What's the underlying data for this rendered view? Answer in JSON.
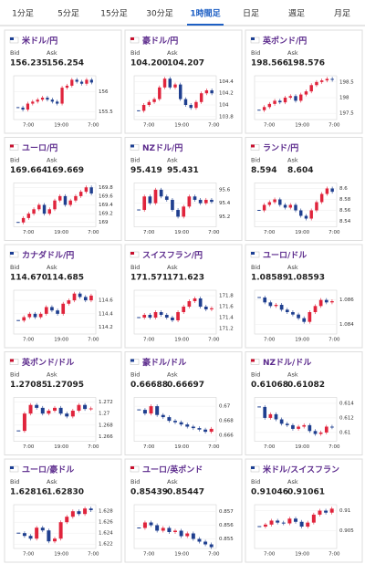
{
  "tabs": [
    "1分足",
    "5分足",
    "15分足",
    "30分足",
    "1時間足",
    "日足",
    "週足",
    "月足"
  ],
  "up_color": "#e0243c",
  "down_color": "#1f3f8f",
  "cards": [
    {
      "pair": "米ドル/円",
      "bid_label": "Bid",
      "ask_label": "Ask",
      "bid": "156.235",
      "ask": "156.254",
      "chart": {
        "type": "candlestick",
        "xlabels": [
          "7:00",
          "19:00",
          "7:00"
        ],
        "ylim": [
          155.3,
          156.4
        ],
        "yticks": [
          156,
          155.5
        ],
        "closes": [
          155.6,
          155.55,
          155.7,
          155.75,
          155.8,
          155.85,
          155.8,
          155.75,
          155.7,
          156.1,
          156.15,
          156.3,
          156.25,
          156.2,
          156.3,
          156.23
        ]
      }
    },
    {
      "pair": "豪ドル/円",
      "bid_label": "Bid",
      "ask_label": "Ask",
      "bid": "104.200",
      "ask": "104.207",
      "chart": {
        "type": "candlestick",
        "xlabels": [
          "7:00",
          "19:00",
          "7:00"
        ],
        "ylim": [
          103.75,
          104.5
        ],
        "yticks": [
          104.4,
          104.2,
          104,
          103.8
        ],
        "closes": [
          103.9,
          104.0,
          104.05,
          104.1,
          104.3,
          104.45,
          104.3,
          104.35,
          104.1,
          104.0,
          103.95,
          104.05,
          104.2,
          104.25,
          104.2
        ]
      }
    },
    {
      "pair": "英ポンド/円",
      "bid_label": "Bid",
      "ask_label": "Ask",
      "bid": "198.566",
      "ask": "198.576",
      "chart": {
        "type": "candlestick",
        "xlabels": [
          "7:00",
          "19:00",
          "7:00"
        ],
        "ylim": [
          197.3,
          198.7
        ],
        "yticks": [
          198.5,
          198,
          197.5
        ],
        "closes": [
          197.6,
          197.7,
          197.8,
          197.9,
          197.85,
          198.0,
          198.05,
          197.9,
          198.1,
          198.2,
          198.4,
          198.5,
          198.55,
          198.6,
          198.57
        ]
      }
    },
    {
      "pair": "ユーロ/円",
      "bid_label": "Bid",
      "ask_label": "Ask",
      "bid": "169.664",
      "ask": "169.669",
      "chart": {
        "type": "candlestick",
        "xlabels": [
          "7:00",
          "19:00",
          "7:00"
        ],
        "ylim": [
          168.9,
          169.9
        ],
        "yticks": [
          169.8,
          169.6,
          169.4,
          169.2,
          169
        ],
        "closes": [
          169.0,
          169.1,
          169.2,
          169.3,
          169.4,
          169.2,
          169.3,
          169.5,
          169.6,
          169.4,
          169.5,
          169.6,
          169.7,
          169.8,
          169.66
        ]
      }
    },
    {
      "pair": "NZドル/円",
      "bid_label": "Bid",
      "ask_label": "Ask",
      "bid": "95.419",
      "ask": "95.431",
      "chart": {
        "type": "candlestick",
        "xlabels": [
          "7:00",
          "19:00",
          "7:00"
        ],
        "ylim": [
          95.05,
          95.7
        ],
        "yticks": [
          95.6,
          95.4,
          95.2
        ],
        "closes": [
          95.3,
          95.5,
          95.4,
          95.6,
          95.5,
          95.45,
          95.3,
          95.2,
          95.35,
          95.5,
          95.45,
          95.4,
          95.45,
          95.42
        ]
      }
    },
    {
      "pair": "ランド/円",
      "bid_label": "Bid",
      "ask_label": "Ask",
      "bid": "8.594",
      "ask": "8.604",
      "chart": {
        "type": "candlestick",
        "xlabels": [
          "7:00",
          "19:00",
          "7:00"
        ],
        "ylim": [
          8.53,
          8.61
        ],
        "yticks": [
          8.6,
          8.58,
          8.56,
          8.54
        ],
        "closes": [
          8.56,
          8.57,
          8.575,
          8.58,
          8.57,
          8.565,
          8.57,
          8.56,
          8.55,
          8.545,
          8.56,
          8.575,
          8.59,
          8.6,
          8.594
        ]
      }
    },
    {
      "pair": "カナダドル/円",
      "bid_label": "Bid",
      "ask_label": "Ask",
      "bid": "114.670",
      "ask": "114.685",
      "chart": {
        "type": "candlestick",
        "xlabels": [
          "7:00",
          "19:00",
          "7:00"
        ],
        "ylim": [
          114.1,
          114.75
        ],
        "yticks": [
          114.6,
          114.4,
          114.2
        ],
        "closes": [
          114.3,
          114.35,
          114.4,
          114.35,
          114.4,
          114.5,
          114.45,
          114.4,
          114.55,
          114.6,
          114.7,
          114.65,
          114.6,
          114.67
        ]
      }
    },
    {
      "pair": "スイスフラン/円",
      "bid_label": "Bid",
      "ask_label": "Ask",
      "bid": "171.571",
      "ask": "171.623",
      "chart": {
        "type": "candlestick",
        "xlabels": [
          "7:00",
          "19:00",
          "7:00"
        ],
        "ylim": [
          171.1,
          171.9
        ],
        "yticks": [
          171.8,
          171.6,
          171.4,
          171.2
        ],
        "closes": [
          171.4,
          171.45,
          171.4,
          171.5,
          171.45,
          171.4,
          171.35,
          171.5,
          171.6,
          171.7,
          171.75,
          171.6,
          171.55,
          171.57
        ]
      }
    },
    {
      "pair": "ユーロ/ドル",
      "bid_label": "Bid",
      "ask_label": "Ask",
      "bid": "1.08589",
      "ask": "1.08593",
      "chart": {
        "type": "candlestick",
        "xlabels": [
          "7:00",
          "19:00",
          "7:00"
        ],
        "ylim": [
          1.0832,
          1.0868
        ],
        "yticks": [
          1.086,
          1.084
        ],
        "closes": [
          1.0862,
          1.0858,
          1.0855,
          1.0856,
          1.0852,
          1.085,
          1.0848,
          1.0845,
          1.0842,
          1.085,
          1.0855,
          1.086,
          1.0858,
          1.0859
        ]
      }
    },
    {
      "pair": "英ポンド/ドル",
      "bid_label": "Bid",
      "ask_label": "Ask",
      "bid": "1.27085",
      "ask": "1.27095",
      "chart": {
        "type": "candlestick",
        "xlabels": [
          "7:00",
          "19:00",
          "7:00"
        ],
        "ylim": [
          1.2652,
          1.2728
        ],
        "yticks": [
          1.272,
          1.27,
          1.268,
          1.266
        ],
        "closes": [
          1.267,
          1.27,
          1.2715,
          1.271,
          1.27,
          1.2705,
          1.271,
          1.27,
          1.2695,
          1.2705,
          1.2715,
          1.2708,
          1.2709
        ]
      }
    },
    {
      "pair": "豪ドル/ドル",
      "bid_label": "Bid",
      "ask_label": "Ask",
      "bid": "0.66688",
      "ask": "0.66697",
      "chart": {
        "type": "candlestick",
        "xlabels": [
          "7:00",
          "19:00",
          "7:00"
        ],
        "ylim": [
          0.6652,
          0.6712
        ],
        "yticks": [
          0.67,
          0.668,
          0.666
        ],
        "closes": [
          0.6695,
          0.669,
          0.67,
          0.6688,
          0.6685,
          0.668,
          0.6678,
          0.6675,
          0.6672,
          0.667,
          0.6668,
          0.6665,
          0.6669
        ]
      }
    },
    {
      "pair": "NZドル/ドル",
      "bid_label": "Bid",
      "ask_label": "Ask",
      "bid": "0.61068",
      "ask": "0.61082",
      "chart": {
        "type": "candlestick",
        "xlabels": [
          "7:00",
          "19:00",
          "7:00"
        ],
        "ylim": [
          0.6088,
          0.6148
        ],
        "yticks": [
          0.614,
          0.612,
          0.61
        ],
        "closes": [
          0.6135,
          0.612,
          0.6125,
          0.6118,
          0.6112,
          0.611,
          0.6105,
          0.6108,
          0.611,
          0.6102,
          0.6098,
          0.61,
          0.6108,
          0.6107
        ]
      }
    },
    {
      "pair": "ユーロ/豪ドル",
      "bid_label": "Bid",
      "ask_label": "Ask",
      "bid": "1.62816",
      "ask": "1.62830",
      "chart": {
        "type": "candlestick",
        "xlabels": [
          "7:00",
          "19:00",
          "7:00"
        ],
        "ylim": [
          1.6212,
          1.6292
        ],
        "yticks": [
          1.628,
          1.626,
          1.624,
          1.622
        ],
        "closes": [
          1.624,
          1.6235,
          1.623,
          1.625,
          1.6245,
          1.6225,
          1.623,
          1.626,
          1.627,
          1.628,
          1.6275,
          1.6285,
          1.6282
        ]
      }
    },
    {
      "pair": "ユーロ/英ポンド",
      "bid_label": "Bid",
      "ask_label": "Ask",
      "bid": "0.85439",
      "ask": "0.85447",
      "chart": {
        "type": "candlestick",
        "xlabels": [
          "7:00",
          "19:00",
          "7:00"
        ],
        "ylim": [
          0.8543,
          0.8575
        ],
        "yticks": [
          0.857,
          0.856,
          0.855
        ],
        "closes": [
          0.8558,
          0.8562,
          0.856,
          0.8556,
          0.8558,
          0.8555,
          0.8556,
          0.8552,
          0.8554,
          0.855,
          0.8548,
          0.8546,
          0.8544
        ]
      }
    },
    {
      "pair": "米ドル/スイスフラン",
      "bid_label": "Bid",
      "ask_label": "Ask",
      "bid": "0.91046",
      "ask": "0.91061",
      "chart": {
        "type": "candlestick",
        "xlabels": [
          "7:00",
          "19:00",
          "7:00"
        ],
        "ylim": [
          0.9005,
          0.9115
        ],
        "yticks": [
          0.91,
          0.905
        ],
        "closes": [
          0.906,
          0.9065,
          0.9075,
          0.907,
          0.9068,
          0.908,
          0.9072,
          0.906,
          0.907,
          0.909,
          0.91,
          0.9095,
          0.9105
        ]
      }
    }
  ]
}
